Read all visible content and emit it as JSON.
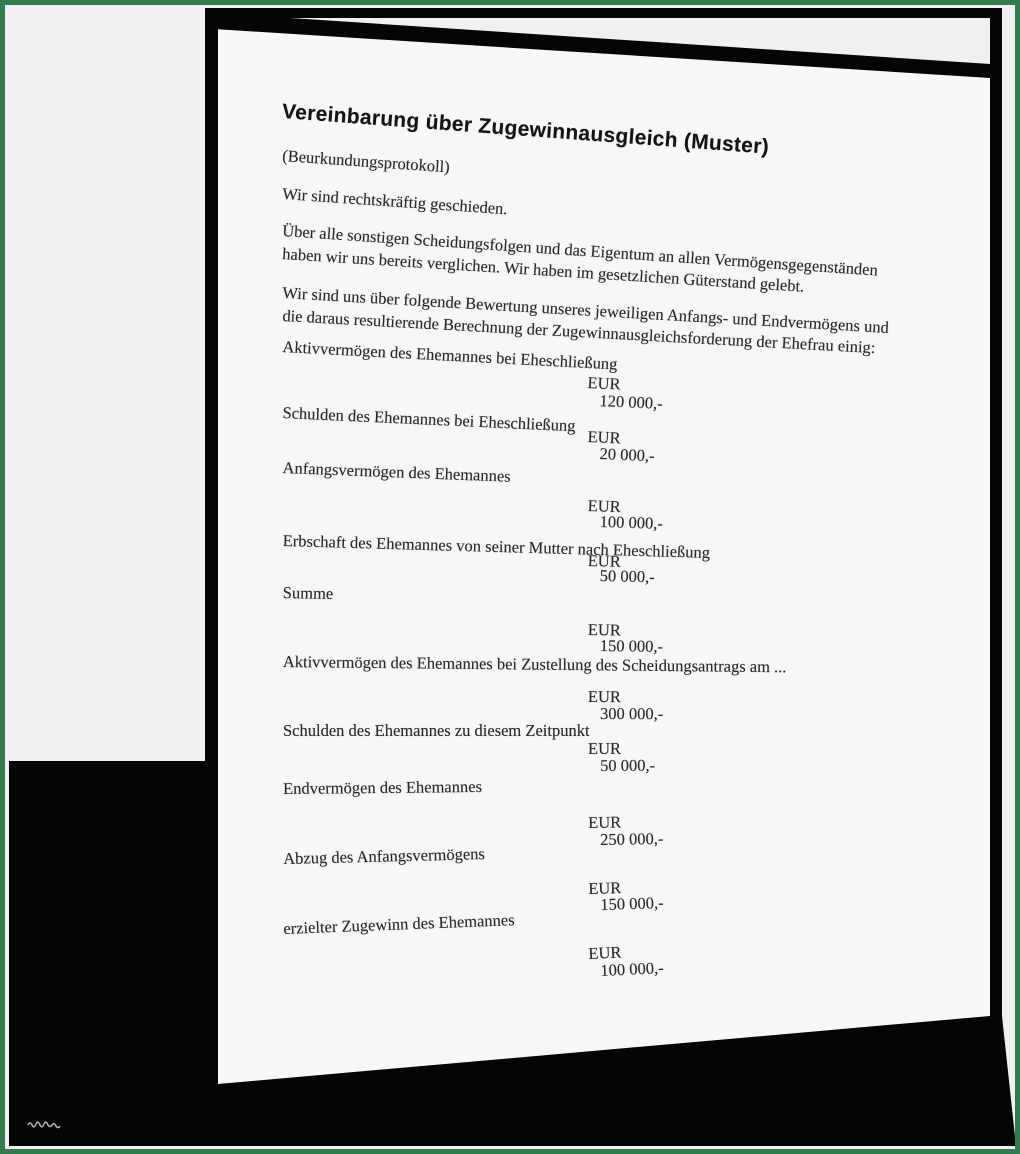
{
  "frame": {
    "border_color": "#2e7d4b",
    "backdrop_color": "#050505",
    "background_color": "#f1eff2",
    "page_color": "#f7f6f8"
  },
  "document": {
    "title": "Vereinbarung über Zugewinnausgleich (Muster)",
    "subtitle": "(Beurkundungsprotokoll)",
    "intro": "Wir sind rechtskräftig geschieden.",
    "paragraphs": [
      {
        "lines": [
          "Über alle sonstigen Scheidungsfolgen und das Eigentum an allen Vermögensgegenständen",
          "haben wir uns bereits verglichen. Wir haben im gesetzlichen Güterstand gelebt."
        ]
      },
      {
        "lines": [
          "Wir sind uns über folgende Bewertung unseres jeweiligen Anfangs- und Endvermögens und",
          "die daraus resultierende Berechnung der Zugewinnausgleichsforderung der Ehefrau einig:"
        ]
      }
    ],
    "ledger": [
      {
        "label": "Aktivvermögen des Ehemannes bei Eheschließung",
        "currency": "EUR",
        "amount": "120 000,-"
      },
      {
        "label": "Schulden des Ehemannes bei Eheschließung",
        "currency": "EUR",
        "amount": "20 000,-"
      },
      {
        "label": "Anfangsvermögen des Ehemannes",
        "currency": "EUR",
        "amount": "100 000,-"
      },
      {
        "label": "Erbschaft des Ehemannes von seiner Mutter nach Eheschließung",
        "currency": "EUR",
        "amount": "50 000,-"
      },
      {
        "label": "Summe",
        "currency": "EUR",
        "amount": "150 000,-"
      },
      {
        "label": "Aktivvermögen des Ehemannes bei Zustellung des Scheidungsantrags am ...",
        "currency": "EUR",
        "amount": "300 000,-"
      },
      {
        "label": "Schulden des Ehemannes zu diesem Zeitpunkt",
        "currency": "EUR",
        "amount": "50 000,-"
      },
      {
        "label": "Endvermögen des Ehemannes",
        "currency": "EUR",
        "amount": "250 000,-"
      },
      {
        "label": "Abzug des Anfangsvermögens",
        "currency": "EUR",
        "amount": "150 000,-"
      },
      {
        "label": "erzielter Zugewinn des Ehemannes",
        "currency": "EUR",
        "amount": "100 000,-"
      }
    ]
  }
}
